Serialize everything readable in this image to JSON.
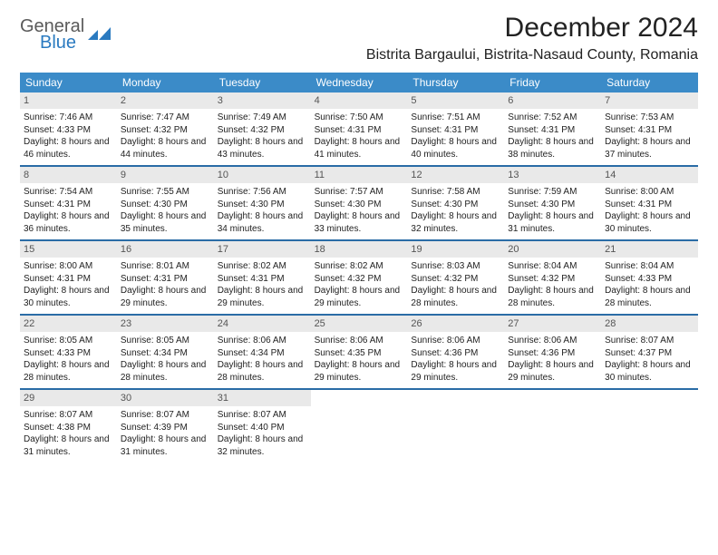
{
  "logo": {
    "general": "General",
    "blue": "Blue"
  },
  "title": "December 2024",
  "location": "Bistrita Bargaului, Bistrita-Nasaud County, Romania",
  "colors": {
    "header_bg": "#3b8bc8",
    "header_text": "#ffffff",
    "week_rule": "#2a6ca6",
    "daynum_bg": "#e9e9e9",
    "daynum_text": "#555555",
    "body_text": "#222222",
    "logo_gray": "#5a5a5a",
    "logo_blue": "#2a7ac0",
    "page_bg": "#ffffff"
  },
  "day_headers": [
    "Sunday",
    "Monday",
    "Tuesday",
    "Wednesday",
    "Thursday",
    "Friday",
    "Saturday"
  ],
  "weeks": [
    [
      {
        "n": "1",
        "sr": "7:46 AM",
        "ss": "4:33 PM",
        "dl": "8 hours and 46 minutes."
      },
      {
        "n": "2",
        "sr": "7:47 AM",
        "ss": "4:32 PM",
        "dl": "8 hours and 44 minutes."
      },
      {
        "n": "3",
        "sr": "7:49 AM",
        "ss": "4:32 PM",
        "dl": "8 hours and 43 minutes."
      },
      {
        "n": "4",
        "sr": "7:50 AM",
        "ss": "4:31 PM",
        "dl": "8 hours and 41 minutes."
      },
      {
        "n": "5",
        "sr": "7:51 AM",
        "ss": "4:31 PM",
        "dl": "8 hours and 40 minutes."
      },
      {
        "n": "6",
        "sr": "7:52 AM",
        "ss": "4:31 PM",
        "dl": "8 hours and 38 minutes."
      },
      {
        "n": "7",
        "sr": "7:53 AM",
        "ss": "4:31 PM",
        "dl": "8 hours and 37 minutes."
      }
    ],
    [
      {
        "n": "8",
        "sr": "7:54 AM",
        "ss": "4:31 PM",
        "dl": "8 hours and 36 minutes."
      },
      {
        "n": "9",
        "sr": "7:55 AM",
        "ss": "4:30 PM",
        "dl": "8 hours and 35 minutes."
      },
      {
        "n": "10",
        "sr": "7:56 AM",
        "ss": "4:30 PM",
        "dl": "8 hours and 34 minutes."
      },
      {
        "n": "11",
        "sr": "7:57 AM",
        "ss": "4:30 PM",
        "dl": "8 hours and 33 minutes."
      },
      {
        "n": "12",
        "sr": "7:58 AM",
        "ss": "4:30 PM",
        "dl": "8 hours and 32 minutes."
      },
      {
        "n": "13",
        "sr": "7:59 AM",
        "ss": "4:30 PM",
        "dl": "8 hours and 31 minutes."
      },
      {
        "n": "14",
        "sr": "8:00 AM",
        "ss": "4:31 PM",
        "dl": "8 hours and 30 minutes."
      }
    ],
    [
      {
        "n": "15",
        "sr": "8:00 AM",
        "ss": "4:31 PM",
        "dl": "8 hours and 30 minutes."
      },
      {
        "n": "16",
        "sr": "8:01 AM",
        "ss": "4:31 PM",
        "dl": "8 hours and 29 minutes."
      },
      {
        "n": "17",
        "sr": "8:02 AM",
        "ss": "4:31 PM",
        "dl": "8 hours and 29 minutes."
      },
      {
        "n": "18",
        "sr": "8:02 AM",
        "ss": "4:32 PM",
        "dl": "8 hours and 29 minutes."
      },
      {
        "n": "19",
        "sr": "8:03 AM",
        "ss": "4:32 PM",
        "dl": "8 hours and 28 minutes."
      },
      {
        "n": "20",
        "sr": "8:04 AM",
        "ss": "4:32 PM",
        "dl": "8 hours and 28 minutes."
      },
      {
        "n": "21",
        "sr": "8:04 AM",
        "ss": "4:33 PM",
        "dl": "8 hours and 28 minutes."
      }
    ],
    [
      {
        "n": "22",
        "sr": "8:05 AM",
        "ss": "4:33 PM",
        "dl": "8 hours and 28 minutes."
      },
      {
        "n": "23",
        "sr": "8:05 AM",
        "ss": "4:34 PM",
        "dl": "8 hours and 28 minutes."
      },
      {
        "n": "24",
        "sr": "8:06 AM",
        "ss": "4:34 PM",
        "dl": "8 hours and 28 minutes."
      },
      {
        "n": "25",
        "sr": "8:06 AM",
        "ss": "4:35 PM",
        "dl": "8 hours and 29 minutes."
      },
      {
        "n": "26",
        "sr": "8:06 AM",
        "ss": "4:36 PM",
        "dl": "8 hours and 29 minutes."
      },
      {
        "n": "27",
        "sr": "8:06 AM",
        "ss": "4:36 PM",
        "dl": "8 hours and 29 minutes."
      },
      {
        "n": "28",
        "sr": "8:07 AM",
        "ss": "4:37 PM",
        "dl": "8 hours and 30 minutes."
      }
    ],
    [
      {
        "n": "29",
        "sr": "8:07 AM",
        "ss": "4:38 PM",
        "dl": "8 hours and 31 minutes."
      },
      {
        "n": "30",
        "sr": "8:07 AM",
        "ss": "4:39 PM",
        "dl": "8 hours and 31 minutes."
      },
      {
        "n": "31",
        "sr": "8:07 AM",
        "ss": "4:40 PM",
        "dl": "8 hours and 32 minutes."
      },
      null,
      null,
      null,
      null
    ]
  ],
  "labels": {
    "sunrise": "Sunrise:",
    "sunset": "Sunset:",
    "daylight": "Daylight:"
  }
}
